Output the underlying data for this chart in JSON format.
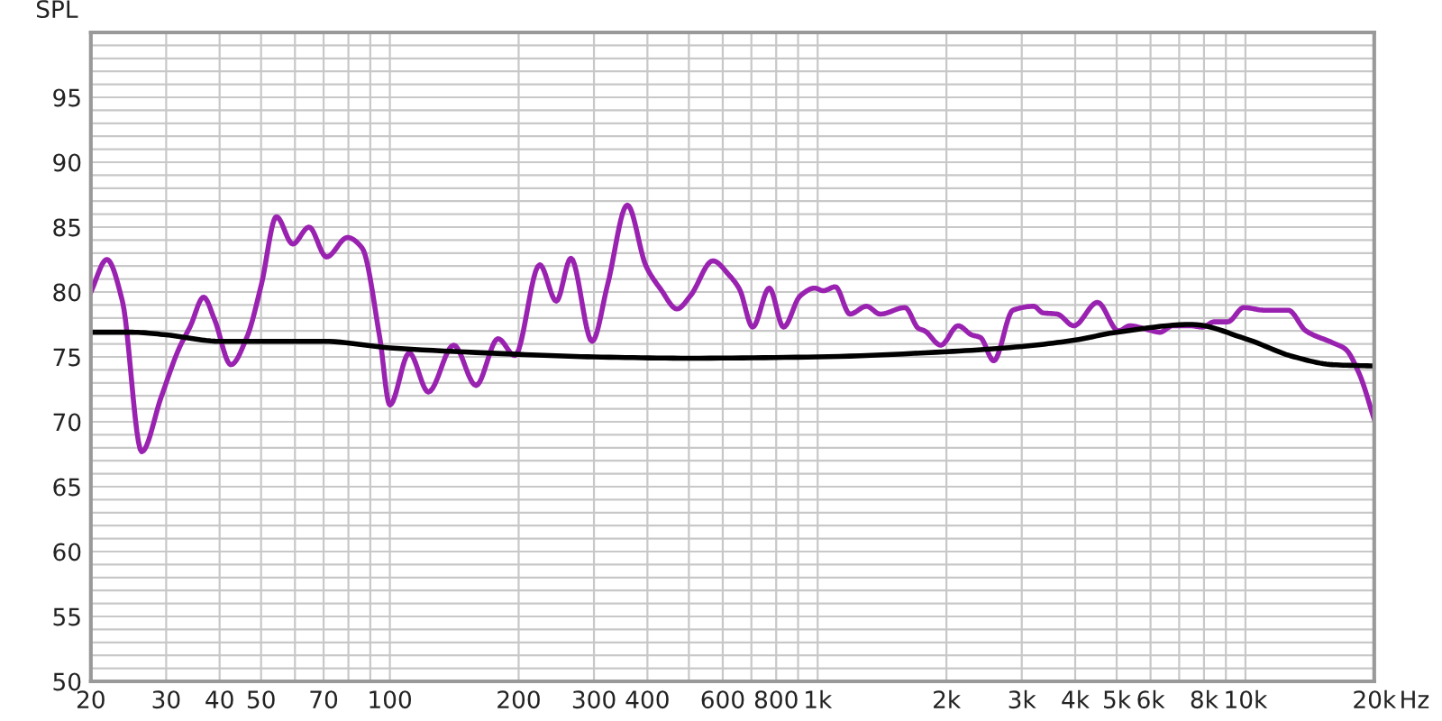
{
  "chart_data": {
    "type": "line",
    "ylabel": "SPL",
    "log": "x",
    "grid": true,
    "marker": "none",
    "line_style": "solid",
    "xlim": [
      20,
      20000
    ],
    "ylim": [
      50,
      100
    ],
    "xticks": [
      20,
      30,
      40,
      50,
      {
        "value": 60,
        "label": null
      },
      70,
      {
        "value": 80,
        "label": null
      },
      {
        "value": 90,
        "label": null
      },
      100,
      200,
      300,
      400,
      {
        "value": 500,
        "label": null
      },
      600,
      {
        "value": 700,
        "label": null
      },
      800,
      {
        "value": 900,
        "label": null
      },
      {
        "value": 1000,
        "label": "1k"
      },
      {
        "value": 2000,
        "label": "2k"
      },
      {
        "value": 3000,
        "label": "3k"
      },
      {
        "value": 4000,
        "label": "4k"
      },
      {
        "value": 5000,
        "label": "5k"
      },
      {
        "value": 6000,
        "label": "6k"
      },
      {
        "value": 7000,
        "label": null
      },
      {
        "value": 8000,
        "label": "8k"
      },
      {
        "value": 9000,
        "label": null
      },
      {
        "value": 10000,
        "label": "10k"
      },
      {
        "value": 20000,
        "label": "20k"
      }
    ],
    "xlabel": "Hz",
    "yticks": [
      50,
      {
        "value": 51,
        "label": null
      },
      {
        "value": 52,
        "label": null
      },
      {
        "value": 53,
        "label": null
      },
      {
        "value": 54,
        "label": null
      },
      55,
      {
        "value": 56,
        "label": null
      },
      {
        "value": 57,
        "label": null
      },
      {
        "value": 58,
        "label": null
      },
      {
        "value": 59,
        "label": null
      },
      60,
      {
        "value": 61,
        "label": null
      },
      {
        "value": 62,
        "label": null
      },
      {
        "value": 63,
        "label": null
      },
      {
        "value": 64,
        "label": null
      },
      65,
      {
        "value": 66,
        "label": null
      },
      {
        "value": 67,
        "label": null
      },
      {
        "value": 68,
        "label": null
      },
      {
        "value": 69,
        "label": null
      },
      70,
      {
        "value": 71,
        "label": null
      },
      {
        "value": 72,
        "label": null
      },
      {
        "value": 73,
        "label": null
      },
      {
        "value": 74,
        "label": null
      },
      75,
      {
        "value": 76,
        "label": null
      },
      {
        "value": 77,
        "label": null
      },
      {
        "value": 78,
        "label": null
      },
      {
        "value": 79,
        "label": null
      },
      80,
      {
        "value": 81,
        "label": null
      },
      {
        "value": 82,
        "label": null
      },
      {
        "value": 83,
        "label": null
      },
      {
        "value": 84,
        "label": null
      },
      85,
      {
        "value": 86,
        "label": null
      },
      {
        "value": 87,
        "label": null
      },
      {
        "value": 88,
        "label": null
      },
      {
        "value": 89,
        "label": null
      },
      90,
      {
        "value": 91,
        "label": null
      },
      {
        "value": 92,
        "label": null
      },
      {
        "value": 93,
        "label": null
      },
      {
        "value": 94,
        "label": null
      },
      95,
      {
        "value": 96,
        "label": null
      },
      {
        "value": 97,
        "label": null
      },
      {
        "value": 98,
        "label": null
      },
      {
        "value": 99,
        "label": null
      },
      {
        "value": 100,
        "label": null
      }
    ],
    "series": [
      {
        "color": "#9a22b0",
        "x": [
          20,
          21.8,
          23.7,
          26.3,
          29.2,
          32.1,
          34.2,
          36.7,
          38.9,
          42.5,
          46.3,
          50.1,
          54.3,
          59.3,
          64.7,
          71.1,
          79.6,
          86.1,
          94.7,
          100,
          111,
          123,
          141,
          159,
          179,
          196,
          224,
          245,
          265,
          297,
          323,
          359,
          397,
          430,
          469,
          504,
          569,
          621,
          657,
          705,
          771,
          832,
          910,
          984,
          1030,
          1100,
          1190,
          1300,
          1400,
          1600,
          1720,
          1780,
          1940,
          2130,
          2290,
          2400,
          2580,
          2860,
          3200,
          3360,
          3630,
          3970,
          4510,
          5050,
          5370,
          5910,
          6310,
          6760,
          7440,
          7930,
          8450,
          9090,
          9910,
          11080,
          12590,
          13850,
          15970,
          17130,
          18450,
          20000
        ],
        "values": [
          80.0,
          82.5,
          79.3,
          67.7,
          71.9,
          75.6,
          77.4,
          79.6,
          77.9,
          74.4,
          76.5,
          80.6,
          85.8,
          83.7,
          85.0,
          82.7,
          84.2,
          83.4,
          76.5,
          71.3,
          75.3,
          72.3,
          75.9,
          72.8,
          76.4,
          75.1,
          82.1,
          79.3,
          82.6,
          76.2,
          80.6,
          86.7,
          82.0,
          80.2,
          78.7,
          79.7,
          82.4,
          81.3,
          80.2,
          77.3,
          80.3,
          77.3,
          79.7,
          80.3,
          80.1,
          80.4,
          78.3,
          78.9,
          78.3,
          78.8,
          77.2,
          77.0,
          75.9,
          77.4,
          76.7,
          76.5,
          74.7,
          78.6,
          78.9,
          78.4,
          78.3,
          77.4,
          79.2,
          77.0,
          77.4,
          77.1,
          76.9,
          77.4,
          77.4,
          77.3,
          77.7,
          77.7,
          78.8,
          78.6,
          78.6,
          77.0,
          76.1,
          75.6,
          73.7,
          70.2
        ]
      },
      {
        "color": "#000000",
        "x": [
          20,
          25,
          30,
          40,
          50,
          70,
          100,
          200,
          300,
          500,
          1000,
          2000,
          3000,
          4000,
          5000,
          7500,
          10000,
          13000,
          16000,
          20000
        ],
        "values": [
          76.9,
          76.9,
          76.7,
          76.2,
          76.2,
          76.2,
          75.7,
          75.2,
          75.0,
          74.9,
          75.0,
          75.4,
          75.8,
          76.3,
          76.9,
          77.5,
          76.4,
          75.0,
          74.4,
          74.3
        ]
      }
    ]
  }
}
